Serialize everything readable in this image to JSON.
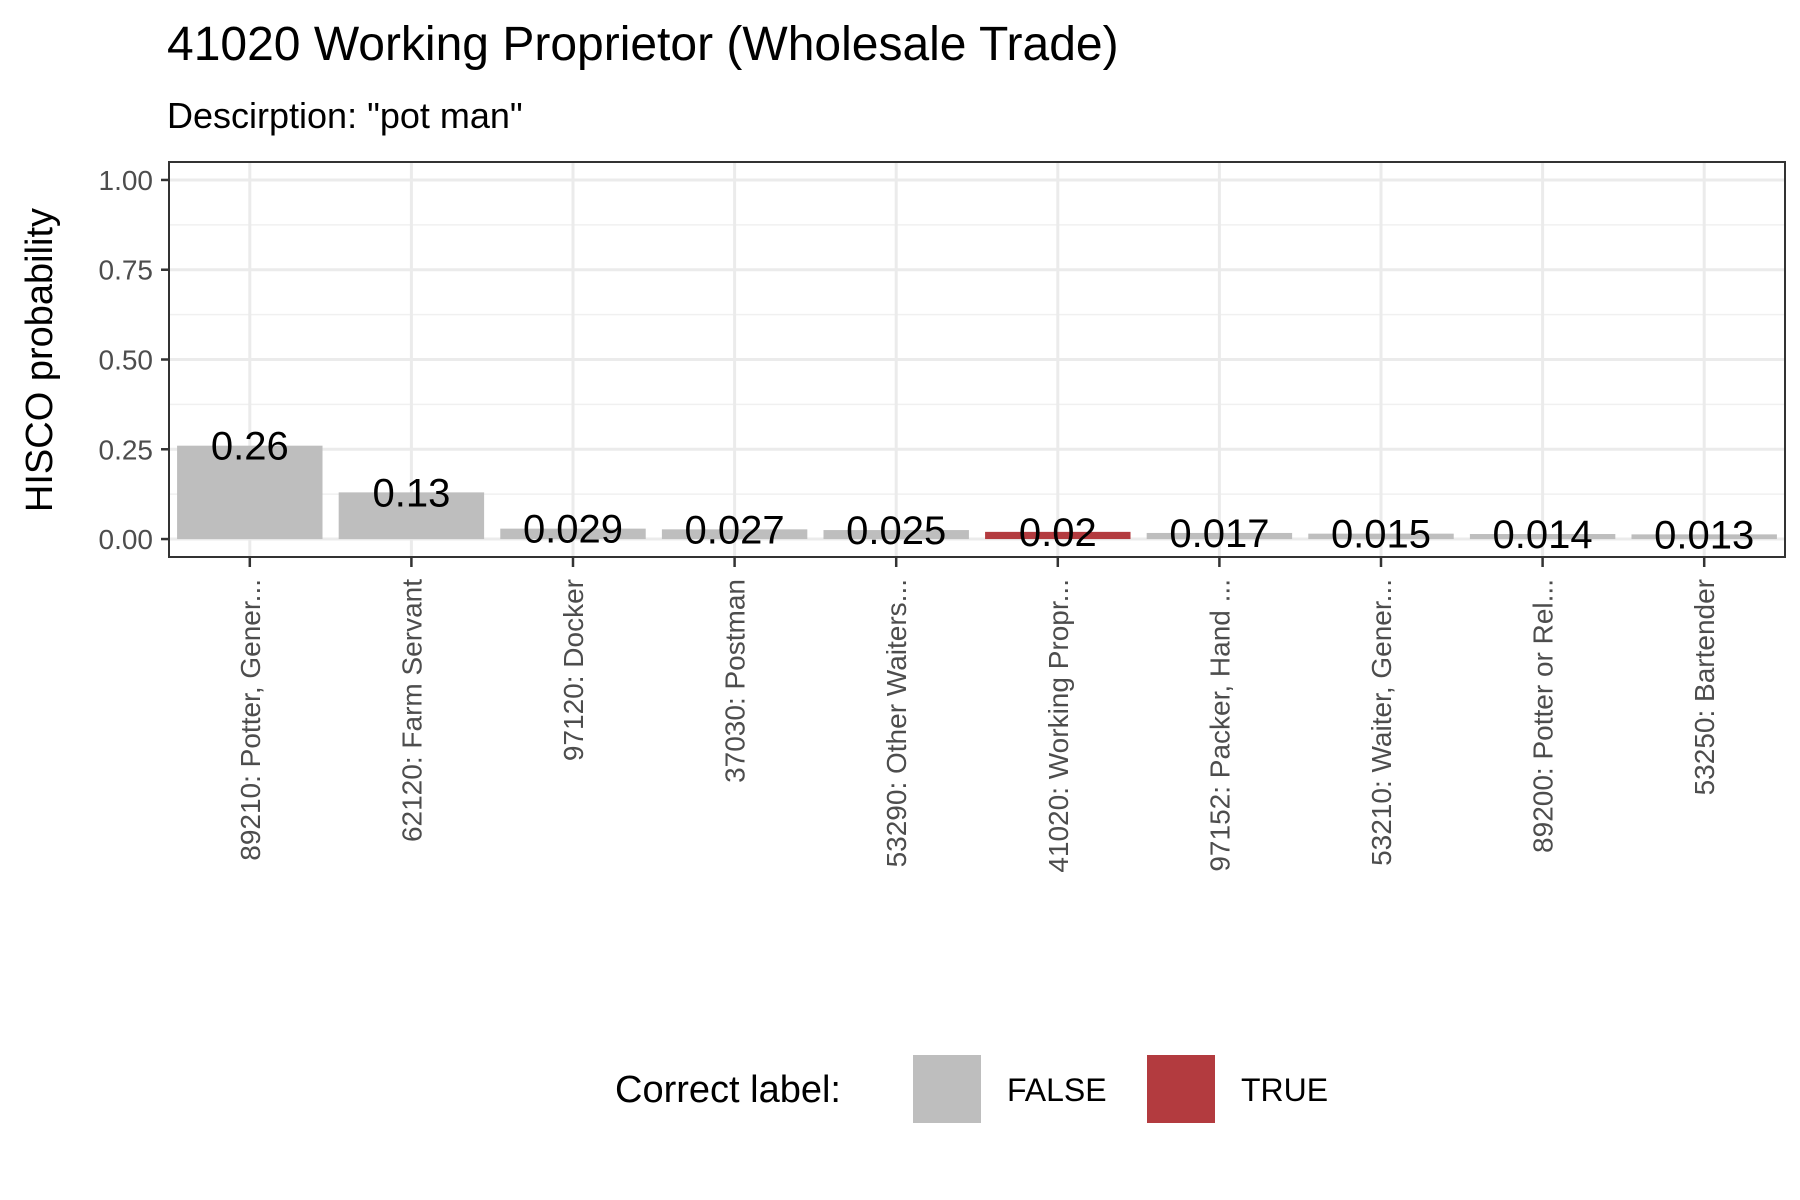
{
  "chart_data": {
    "type": "bar",
    "title": "41020 Working Proprietor (Wholesale Trade)",
    "subtitle": "Descirption: \"pot man\"",
    "ylabel": "HISCO probability",
    "xlabel": "",
    "ylim": [
      0,
      1.05
    ],
    "yticks": [
      0,
      0.25,
      0.5,
      0.75,
      1.0
    ],
    "ytick_labels": [
      "0.00",
      "0.25",
      "0.50",
      "0.75",
      "1.00"
    ],
    "grid": true,
    "categories": [
      "89210: Potter, Gener...",
      "62120: Farm Servant",
      "97120: Docker",
      "37030: Postman",
      "53290: Other Waiters...",
      "41020: Working Propr...",
      "97152: Packer, Hand ...",
      "53210: Waiter, Gener...",
      "89200: Potter or Rel...",
      "53250: Bartender"
    ],
    "values": [
      0.26,
      0.13,
      0.029,
      0.027,
      0.025,
      0.02,
      0.017,
      0.015,
      0.014,
      0.013
    ],
    "data_labels": [
      "0.26",
      "0.13",
      "0.029",
      "0.027",
      "0.025",
      "0.02",
      "0.017",
      "0.015",
      "0.014",
      "0.013"
    ],
    "correct": [
      false,
      false,
      false,
      false,
      false,
      true,
      false,
      false,
      false,
      false
    ],
    "legend": {
      "title": "Correct label:",
      "position": "bottom",
      "items": [
        {
          "label": "FALSE",
          "color": "#bebebe"
        },
        {
          "label": "TRUE",
          "color": "#b33b3f"
        }
      ]
    }
  }
}
